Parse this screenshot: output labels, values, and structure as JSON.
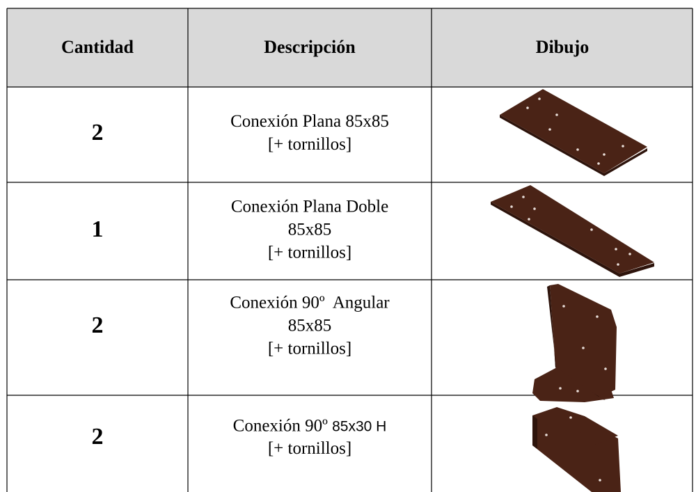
{
  "table": {
    "header": [
      "Cantidad",
      "Descripción",
      "Dibujo"
    ],
    "rows": [
      {
        "quantity": "2",
        "description": [
          "Conexión Plana 85x85",
          "[+ tornillos]"
        ]
      },
      {
        "quantity": "1",
        "description": [
          "Conexión Plana Doble",
          "85x85",
          "[+ tornillos]"
        ]
      },
      {
        "quantity": "2",
        "description": [
          "Conexión 90º  Angular",
          "85x85",
          "[+ tornillos]"
        ]
      },
      {
        "quantity": "2",
        "description": [
          [
            "Conexión 90º ",
            "85x30 H"
          ],
          "[+ tornillos]"
        ]
      }
    ]
  }
}
